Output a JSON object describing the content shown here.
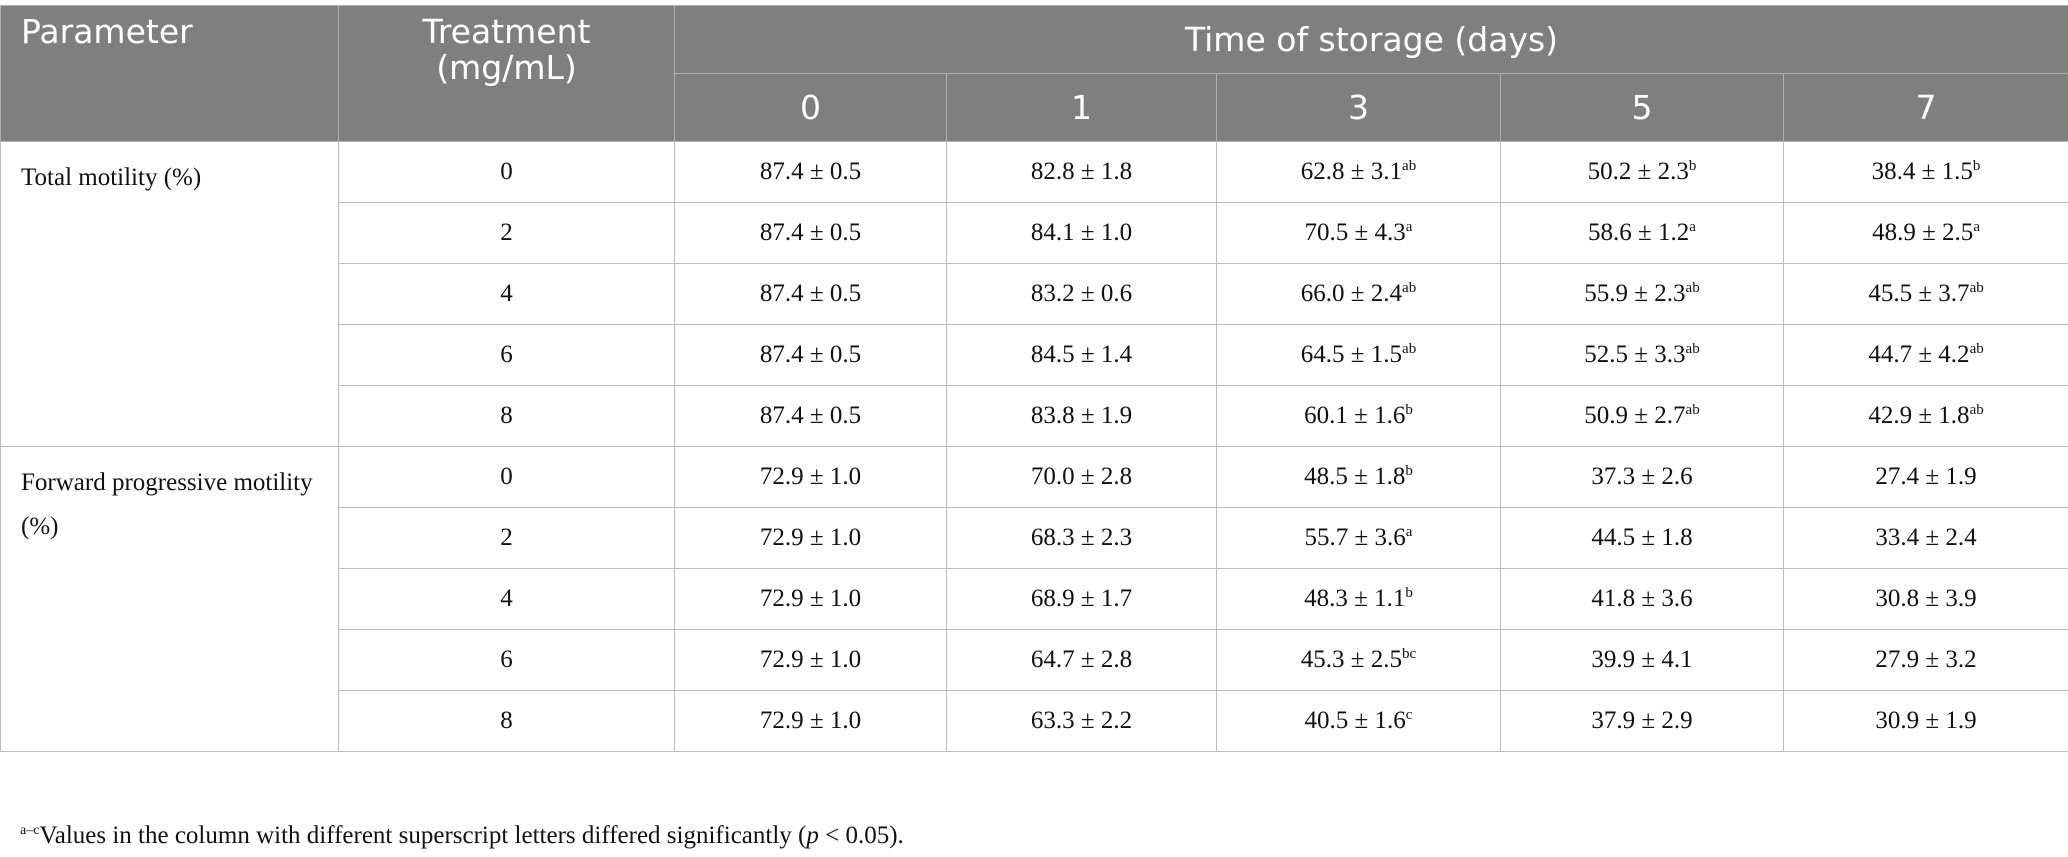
{
  "header": {
    "parameter": "Parameter",
    "treatment": [
      "Treatment",
      "(mg/mL)"
    ],
    "time": "Time of storage (days)",
    "days": [
      "0",
      "1",
      "3",
      "5",
      "7"
    ]
  },
  "groups": [
    {
      "parameter": "Total motility (%)",
      "rows": [
        {
          "treatment": "0",
          "values": [
            {
              "text": "87.4 ± 0.5"
            },
            {
              "text": "82.8 ± 1.8"
            },
            {
              "text": "62.8 ± 3.1",
              "sup": "ab"
            },
            {
              "text": "50.2 ± 2.3",
              "sup": "b"
            },
            {
              "text": "38.4 ± 1.5",
              "sup": "b"
            }
          ]
        },
        {
          "treatment": "2",
          "values": [
            {
              "text": "87.4 ± 0.5"
            },
            {
              "text": "84.1 ± 1.0"
            },
            {
              "text": "70.5 ± 4.3",
              "sup": "a"
            },
            {
              "text": "58.6 ± 1.2",
              "sup": "a"
            },
            {
              "text": "48.9 ± 2.5",
              "sup": "a"
            }
          ]
        },
        {
          "treatment": "4",
          "values": [
            {
              "text": "87.4 ± 0.5"
            },
            {
              "text": "83.2 ± 0.6"
            },
            {
              "text": "66.0 ± 2.4",
              "sup": "ab"
            },
            {
              "text": "55.9 ± 2.3",
              "sup": "ab"
            },
            {
              "text": "45.5 ± 3.7",
              "sup": "ab"
            }
          ]
        },
        {
          "treatment": "6",
          "values": [
            {
              "text": "87.4 ± 0.5"
            },
            {
              "text": "84.5 ± 1.4"
            },
            {
              "text": "64.5 ± 1.5",
              "sup": "ab"
            },
            {
              "text": "52.5 ± 3.3",
              "sup": "ab"
            },
            {
              "text": "44.7 ± 4.2",
              "sup": "ab"
            }
          ]
        },
        {
          "treatment": "8",
          "values": [
            {
              "text": "87.4 ± 0.5"
            },
            {
              "text": "83.8 ± 1.9"
            },
            {
              "text": "60.1 ± 1.6",
              "sup": "b"
            },
            {
              "text": "50.9 ± 2.7",
              "sup": "ab"
            },
            {
              "text": "42.9 ± 1.8",
              "sup": "ab"
            }
          ]
        }
      ]
    },
    {
      "parameter": "Forward progressive motility (%)",
      "rows": [
        {
          "treatment": "0",
          "values": [
            {
              "text": "72.9 ± 1.0"
            },
            {
              "text": "70.0 ± 2.8"
            },
            {
              "text": "48.5 ± 1.8",
              "sup": "b"
            },
            {
              "text": "37.3 ± 2.6"
            },
            {
              "text": "27.4 ± 1.9"
            }
          ]
        },
        {
          "treatment": "2",
          "values": [
            {
              "text": "72.9 ± 1.0"
            },
            {
              "text": "68.3 ± 2.3"
            },
            {
              "text": "55.7 ± 3.6",
              "sup": "a"
            },
            {
              "text": "44.5 ± 1.8"
            },
            {
              "text": "33.4 ± 2.4"
            }
          ]
        },
        {
          "treatment": "4",
          "values": [
            {
              "text": "72.9 ± 1.0"
            },
            {
              "text": "68.9 ± 1.7"
            },
            {
              "text": "48.3 ± 1.1",
              "sup": "b"
            },
            {
              "text": "41.8 ± 3.6"
            },
            {
              "text": "30.8 ± 3.9"
            }
          ]
        },
        {
          "treatment": "6",
          "values": [
            {
              "text": "72.9 ± 1.0"
            },
            {
              "text": "64.7 ± 2.8"
            },
            {
              "text": "45.3 ± 2.5",
              "sup": "bc"
            },
            {
              "text": "39.9 ± 4.1"
            },
            {
              "text": "27.9 ± 3.2"
            }
          ]
        },
        {
          "treatment": "8",
          "values": [
            {
              "text": "72.9 ± 1.0"
            },
            {
              "text": "63.3 ± 2.2"
            },
            {
              "text": "40.5 ± 1.6",
              "sup": "c"
            },
            {
              "text": "37.9 ± 2.9"
            },
            {
              "text": "30.9 ± 1.9"
            }
          ]
        }
      ]
    }
  ],
  "footnote": {
    "sup": "a–c",
    "text_before": "Values in the column with different superscript letters differed significantly (",
    "italic": "p",
    "text_after": " < 0.05)."
  }
}
